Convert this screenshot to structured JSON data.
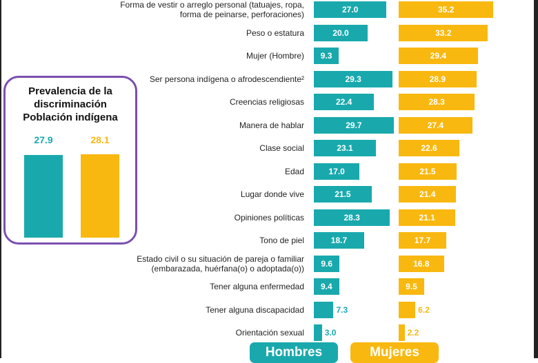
{
  "inset": {
    "title": "Prevalencia de la\ndiscriminación\nPoblación indígena",
    "values": [
      27.9,
      28.1
    ],
    "value_labels": [
      "27.9",
      "28.1"
    ],
    "colors": [
      "#19a9ad",
      "#f9b80f"
    ]
  },
  "chart_data": {
    "type": "bar",
    "orientation": "horizontal",
    "categories": [
      "Forma de vestir o arreglo personal (tatuajes, ropa, forma de peinarse, perforaciones)",
      "Peso o estatura",
      "Mujer (Hombre)",
      "Ser persona indígena o afrodescendiente²",
      "Creencias religiosas",
      "Manera de hablar",
      "Clase social",
      "Edad",
      "Lugar donde vive",
      "Opiniones políticas",
      "Tono de piel",
      "Estado civil o su situación de pareja o familiar (embarazada, huérfana(o) o adoptada(o))",
      "Tener alguna enfermedad",
      "Tener alguna discapacidad",
      "Orientación sexual"
    ],
    "series": [
      {
        "name": "Hombres",
        "color": "#19a9ad",
        "values": [
          27.0,
          20.0,
          9.3,
          29.3,
          22.4,
          29.7,
          23.1,
          17.0,
          21.5,
          28.3,
          18.7,
          9.6,
          9.4,
          7.3,
          3.0
        ],
        "labels": [
          "27.0",
          "20.0",
          "9.3",
          "29.3",
          "22.4",
          "29.7",
          "23.1",
          "17.0",
          "21.5",
          "28.3",
          "18.7",
          "9.6",
          "9.4",
          "7.3",
          "3.0"
        ]
      },
      {
        "name": "Mujeres",
        "color": "#f9b80f",
        "values": [
          35.2,
          33.2,
          29.4,
          28.9,
          28.3,
          27.4,
          22.6,
          21.5,
          21.4,
          21.1,
          17.7,
          16.8,
          9.5,
          6.2,
          2.2
        ],
        "labels": [
          "35.2",
          "33.2",
          "29.4",
          "28.9",
          "28.3",
          "27.4",
          "22.6",
          "21.5",
          "21.4",
          "21.1",
          "17.7",
          "16.8",
          "9.5",
          "6.2",
          "2.2"
        ]
      }
    ]
  },
  "legend": {
    "hombres": "Hombres",
    "mujeres": "Mujeres"
  }
}
